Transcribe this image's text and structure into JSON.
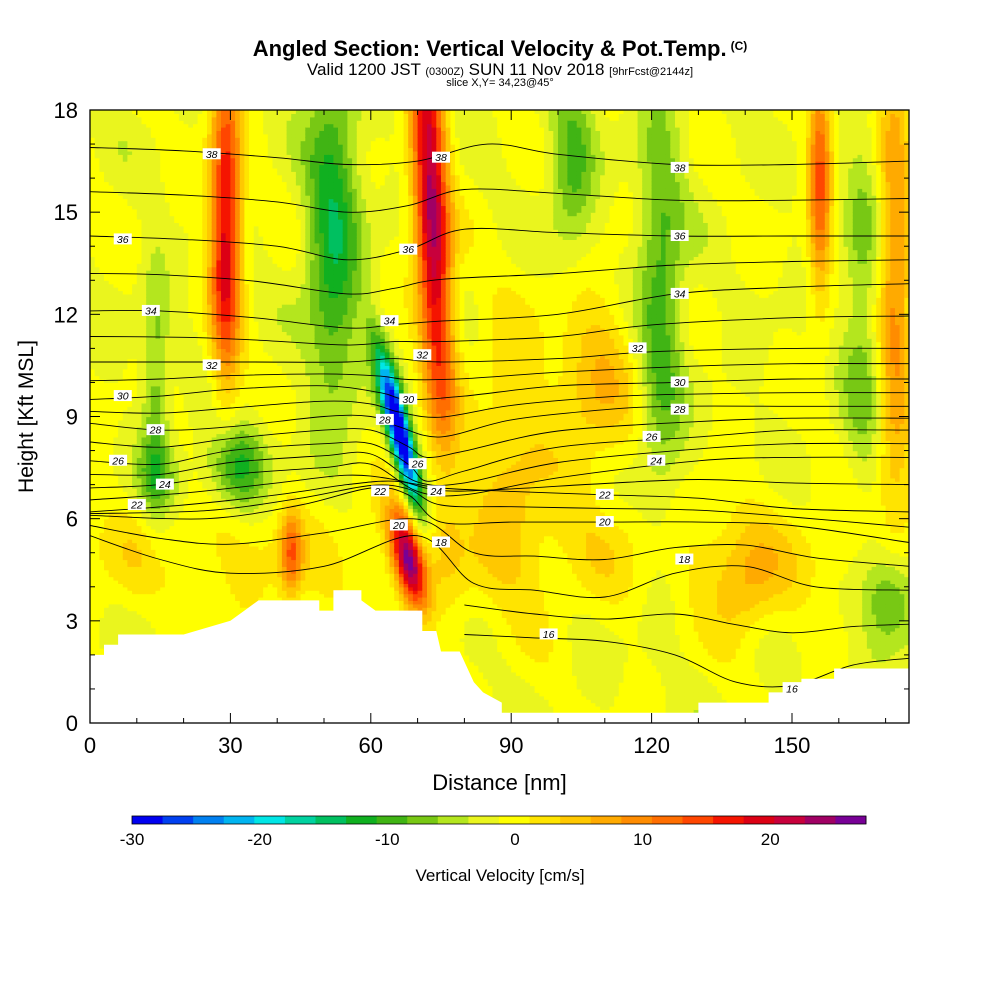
{
  "header": {
    "title": "Angled Section: Vertical Velocity & Pot.Temp.",
    "title_tag": "(C)",
    "valid_prefix": "Valid 1200 JST",
    "valid_utc": "(0300Z)",
    "valid_date": "SUN 11 Nov 2018",
    "forecast": "[9hrFcst@2144z]",
    "slice": "slice X,Y= 34,23@45°"
  },
  "chart_data": {
    "type": "heatmap",
    "xlabel": "Distance [nm]",
    "ylabel": "Height [Kft MSL]",
    "xlim": [
      0,
      175
    ],
    "ylim": [
      0,
      18
    ],
    "x_ticks": [
      0,
      30,
      60,
      90,
      120,
      150
    ],
    "y_ticks": [
      0,
      3,
      6,
      9,
      12,
      15,
      18
    ],
    "fill_field": "Vertical Velocity [cm/s]",
    "contour_field": "Potential Temperature (C)",
    "colorbar": {
      "label": "Vertical Velocity [cm/s]",
      "min": -30,
      "max": 27.5,
      "step": 2.5,
      "tick_labels": [
        -30,
        -20,
        -10,
        0,
        10,
        20
      ],
      "colors": [
        "#0000f0",
        "#0040f0",
        "#0080f0",
        "#00b4f0",
        "#00e6e6",
        "#00d2a0",
        "#00c060",
        "#10b020",
        "#40b414",
        "#78c814",
        "#b4e61e",
        "#eaf51e",
        "#ffff00",
        "#ffe400",
        "#ffc800",
        "#ffaa00",
        "#ff8c00",
        "#ff6e00",
        "#ff4600",
        "#f51400",
        "#dc0014",
        "#c8003c",
        "#a00064",
        "#780096"
      ]
    },
    "features": [
      {
        "type": "updraft",
        "x": 29,
        "z_range": [
          10,
          18
        ],
        "max": 22
      },
      {
        "type": "updraft",
        "x": 69,
        "z_range": [
          3,
          6.5
        ],
        "max": 25
      },
      {
        "type": "updraft",
        "x": 72,
        "z_range": [
          9,
          18
        ],
        "max": 27
      },
      {
        "type": "updraft",
        "x": 156,
        "z_range": [
          12,
          18
        ],
        "max": 15
      },
      {
        "type": "downdraft",
        "x": 67,
        "z_range": [
          6.5,
          11.5
        ],
        "min": -30
      },
      {
        "type": "downdraft",
        "x": 50,
        "z_range": [
          10,
          18
        ],
        "min": -10
      },
      {
        "type": "downdraft",
        "x": 31,
        "z_range": [
          6.5,
          8.5
        ],
        "min": -12
      },
      {
        "type": "downdraft",
        "x": 171,
        "z_range": [
          2.5,
          4.5
        ],
        "min": -11
      }
    ],
    "terrain_kft": [
      [
        0,
        2.0
      ],
      [
        3,
        2.0
      ],
      [
        3,
        2.3
      ],
      [
        6,
        2.3
      ],
      [
        6,
        2.6
      ],
      [
        10,
        2.6
      ],
      [
        10,
        2.6
      ],
      [
        20,
        2.6
      ],
      [
        30,
        3.0
      ],
      [
        33,
        3.3
      ],
      [
        36,
        3.6
      ],
      [
        49,
        3.6
      ],
      [
        49,
        3.3
      ],
      [
        52,
        3.3
      ],
      [
        52,
        3.9
      ],
      [
        58,
        3.9
      ],
      [
        58,
        3.6
      ],
      [
        61,
        3.3
      ],
      [
        66,
        3.3
      ],
      [
        71,
        3.3
      ],
      [
        71,
        2.7
      ],
      [
        74,
        2.7
      ],
      [
        75,
        2.1
      ],
      [
        79,
        2.1
      ],
      [
        82,
        1.2
      ],
      [
        84,
        0.9
      ],
      [
        88,
        0.6
      ],
      [
        88,
        0.3
      ],
      [
        130,
        0.3
      ],
      [
        130,
        0.6
      ],
      [
        145,
        0.6
      ],
      [
        145,
        0.9
      ],
      [
        148,
        0.9
      ],
      [
        148,
        1.2
      ],
      [
        152,
        1.2
      ],
      [
        152,
        1.3
      ],
      [
        159,
        1.3
      ],
      [
        159,
        1.6
      ],
      [
        175,
        1.6
      ]
    ],
    "theta_contours": [
      {
        "level": 16,
        "points": [
          [
            80,
            2.6
          ],
          [
            95,
            2.5
          ],
          [
            110,
            2.4
          ],
          [
            125,
            2.0
          ],
          [
            138,
            1.2
          ],
          [
            150,
            1.1
          ],
          [
            163,
            1.7
          ],
          [
            175,
            1.9
          ]
        ],
        "labels": [
          [
            98,
            2.6
          ],
          [
            150,
            1.0
          ]
        ]
      },
      {
        "level": 18,
        "points": [
          [
            0,
            5.5
          ],
          [
            15,
            4.8
          ],
          [
            30,
            4.4
          ],
          [
            50,
            4.6
          ],
          [
            70,
            5.5
          ],
          [
            82,
            4.1
          ],
          [
            95,
            3.9
          ],
          [
            110,
            3.7
          ],
          [
            125,
            4.4
          ],
          [
            140,
            4.6
          ],
          [
            155,
            4.0
          ],
          [
            175,
            3.9
          ]
        ],
        "labels": [
          [
            75,
            5.3
          ],
          [
            127,
            4.8
          ]
        ]
      },
      {
        "level": 20,
        "points": [
          [
            0,
            6.1
          ],
          [
            25,
            6.0
          ],
          [
            45,
            6.4
          ],
          [
            60,
            6.9
          ],
          [
            68,
            6.7
          ],
          [
            75,
            5.9
          ],
          [
            90,
            5.9
          ],
          [
            110,
            5.9
          ],
          [
            130,
            5.9
          ],
          [
            150,
            5.8
          ],
          [
            175,
            5.3
          ]
        ],
        "labels": [
          [
            66,
            5.8
          ],
          [
            110,
            5.9
          ]
        ]
      },
      {
        "level": 22,
        "points": [
          [
            0,
            6.2
          ],
          [
            20,
            6.4
          ],
          [
            40,
            6.7
          ],
          [
            55,
            7.0
          ],
          [
            65,
            7.1
          ],
          [
            75,
            6.9
          ],
          [
            90,
            6.8
          ],
          [
            110,
            6.7
          ],
          [
            130,
            6.6
          ],
          [
            150,
            6.3
          ],
          [
            175,
            6.2
          ]
        ],
        "labels": [
          [
            10,
            6.4
          ],
          [
            62,
            6.8
          ],
          [
            110,
            6.7
          ]
        ]
      },
      {
        "level": 24,
        "points": [
          [
            0,
            6.9
          ],
          [
            15,
            7.0
          ],
          [
            30,
            7.3
          ],
          [
            50,
            7.5
          ],
          [
            60,
            7.6
          ],
          [
            70,
            6.8
          ],
          [
            80,
            6.7
          ],
          [
            100,
            7.2
          ],
          [
            130,
            7.7
          ],
          [
            150,
            7.8
          ],
          [
            175,
            7.8
          ]
        ],
        "labels": [
          [
            16,
            7.0
          ],
          [
            74,
            6.8
          ],
          [
            121,
            7.7
          ]
        ]
      },
      {
        "level": 26,
        "points": [
          [
            0,
            7.7
          ],
          [
            15,
            7.6
          ],
          [
            30,
            8.0
          ],
          [
            50,
            8.2
          ],
          [
            60,
            8.2
          ],
          [
            68,
            7.6
          ],
          [
            72,
            7.1
          ],
          [
            80,
            7.4
          ],
          [
            100,
            8.1
          ],
          [
            130,
            8.4
          ],
          [
            150,
            8.6
          ],
          [
            175,
            8.6
          ]
        ],
        "labels": [
          [
            6,
            7.7
          ],
          [
            70,
            7.6
          ],
          [
            120,
            8.4
          ]
        ]
      },
      {
        "level": 28,
        "points": [
          [
            0,
            8.8
          ],
          [
            15,
            8.6
          ],
          [
            30,
            8.7
          ],
          [
            50,
            9.0
          ],
          [
            60,
            9.0
          ],
          [
            66,
            8.7
          ],
          [
            75,
            8.4
          ],
          [
            90,
            8.9
          ],
          [
            110,
            9.2
          ],
          [
            125,
            9.3
          ],
          [
            150,
            9.3
          ],
          [
            175,
            9.3
          ]
        ],
        "labels": [
          [
            14,
            8.6
          ],
          [
            63,
            8.9
          ],
          [
            126,
            9.2
          ]
        ]
      },
      {
        "level": 30,
        "points": [
          [
            0,
            9.5
          ],
          [
            15,
            9.6
          ],
          [
            30,
            9.8
          ],
          [
            50,
            9.9
          ],
          [
            62,
            9.7
          ],
          [
            68,
            9.5
          ],
          [
            80,
            9.6
          ],
          [
            100,
            9.9
          ],
          [
            125,
            10.0
          ],
          [
            150,
            10.1
          ],
          [
            175,
            10.1
          ]
        ],
        "labels": [
          [
            7,
            9.6
          ],
          [
            68,
            9.5
          ],
          [
            126,
            10.0
          ]
        ]
      },
      {
        "level": 32,
        "points": [
          [
            0,
            10.6
          ],
          [
            20,
            10.6
          ],
          [
            35,
            10.6
          ],
          [
            55,
            10.6
          ],
          [
            65,
            10.7
          ],
          [
            75,
            10.6
          ],
          [
            100,
            10.7
          ],
          [
            120,
            10.9
          ],
          [
            150,
            11.0
          ],
          [
            175,
            11.0
          ]
        ],
        "labels": [
          [
            26,
            10.5
          ],
          [
            71,
            10.8
          ],
          [
            117,
            11.0
          ]
        ]
      },
      {
        "level": 34,
        "points": [
          [
            0,
            12.1
          ],
          [
            15,
            12.1
          ],
          [
            35,
            11.9
          ],
          [
            55,
            11.6
          ],
          [
            65,
            11.7
          ],
          [
            75,
            11.8
          ],
          [
            100,
            12.0
          ],
          [
            125,
            12.6
          ],
          [
            150,
            12.8
          ],
          [
            175,
            12.9
          ]
        ],
        "labels": [
          [
            13,
            12.1
          ],
          [
            64,
            11.8
          ],
          [
            126,
            12.6
          ]
        ]
      },
      {
        "level": 36,
        "points": [
          [
            0,
            14.3
          ],
          [
            20,
            14.2
          ],
          [
            40,
            14.0
          ],
          [
            55,
            13.6
          ],
          [
            68,
            13.9
          ],
          [
            80,
            14.5
          ],
          [
            100,
            14.4
          ],
          [
            125,
            14.3
          ],
          [
            150,
            14.3
          ],
          [
            175,
            14.3
          ]
        ],
        "labels": [
          [
            7,
            14.2
          ],
          [
            68,
            13.9
          ],
          [
            126,
            14.3
          ]
        ]
      },
      {
        "level": 38,
        "points": [
          [
            0,
            16.9
          ],
          [
            20,
            16.8
          ],
          [
            40,
            16.6
          ],
          [
            55,
            16.4
          ],
          [
            70,
            16.5
          ],
          [
            85,
            17.0
          ],
          [
            100,
            16.7
          ],
          [
            125,
            16.4
          ],
          [
            150,
            16.4
          ],
          [
            175,
            16.5
          ]
        ],
        "labels": [
          [
            26,
            16.7
          ],
          [
            75,
            16.6
          ],
          [
            126,
            16.3
          ]
        ]
      }
    ]
  }
}
